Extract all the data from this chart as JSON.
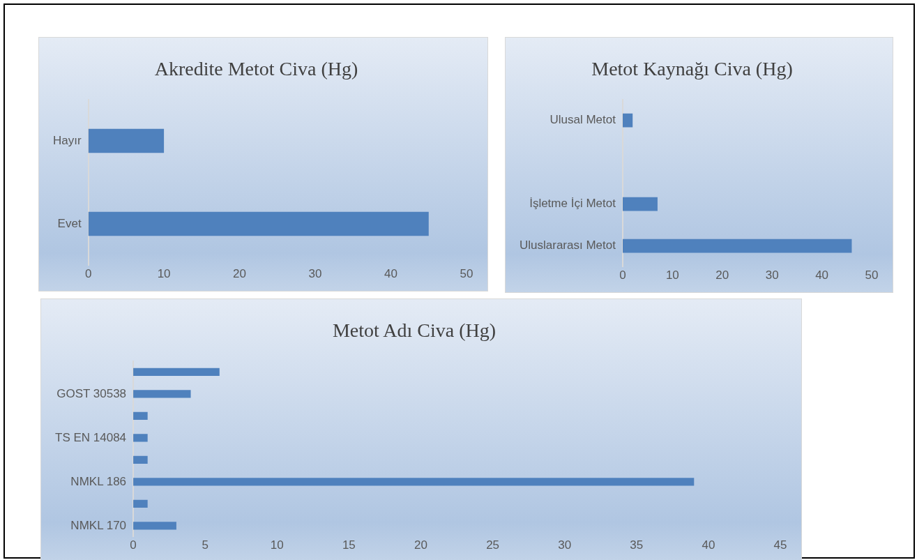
{
  "chart_data": [
    {
      "type": "bar",
      "orientation": "horizontal",
      "title": "Akredite Metot Civa (Hg)",
      "categories": [
        "Hayır",
        "Evet"
      ],
      "values": [
        10,
        45
      ],
      "color": "#4f81bd",
      "xlim": [
        0,
        50
      ],
      "xticks": [
        0,
        10,
        20,
        30,
        40,
        50
      ],
      "grid": false,
      "legend": false
    },
    {
      "type": "bar",
      "orientation": "horizontal",
      "title": "Metot Kaynağı Civa (Hg)",
      "categories": [
        "Ulusal Metot",
        null,
        "İşletme İçi Metot",
        "Uluslararası Metot"
      ],
      "values": [
        2,
        0,
        7,
        46
      ],
      "color": "#4f81bd",
      "xlim": [
        0,
        50
      ],
      "xticks": [
        0,
        10,
        20,
        30,
        40,
        50
      ],
      "grid": false,
      "legend": false
    },
    {
      "type": "bar",
      "orientation": "horizontal",
      "title": "Metot Adı Civa (Hg)",
      "categories": [
        null,
        "GOST 30538",
        null,
        "TS EN 14084",
        null,
        "NMKL 186",
        null,
        "NMKL 170"
      ],
      "values": [
        6,
        4,
        1,
        1,
        1,
        39,
        1,
        3
      ],
      "color": "#4f81bd",
      "xlim": [
        0,
        45
      ],
      "xticks": [
        0,
        5,
        10,
        15,
        20,
        25,
        30,
        35,
        40,
        45
      ],
      "grid": false,
      "legend": false
    }
  ]
}
